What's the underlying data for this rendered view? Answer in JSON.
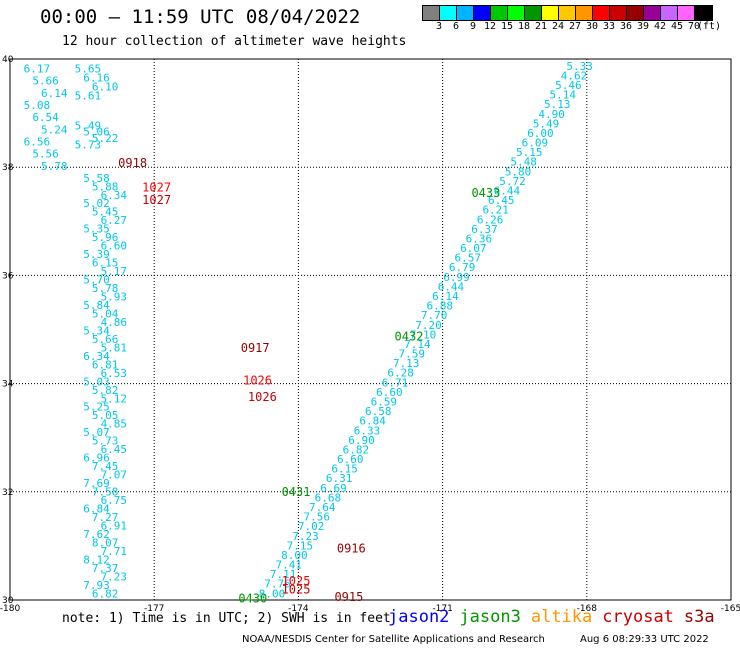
{
  "header": {
    "title": "00:00 – 11:59 UTC 08/04/2022",
    "subtitle": "12 hour collection of altimeter wave heights"
  },
  "colorbar": {
    "colors": [
      "#808080",
      "#00ffff",
      "#00b4ff",
      "#0000ff",
      "#00c800",
      "#00ff00",
      "#009600",
      "#ffff00",
      "#ffc800",
      "#ff9600",
      "#ff0000",
      "#c80000",
      "#960000",
      "#960096",
      "#c864ff",
      "#ff64ff",
      "#000000"
    ],
    "labels": [
      "3",
      "6",
      "9",
      "12",
      "15",
      "18",
      "21",
      "24",
      "27",
      "30",
      "33",
      "36",
      "39",
      "42",
      "45",
      "70",
      "(ft)"
    ]
  },
  "map": {
    "lon_range": [
      -180,
      -165
    ],
    "lat_range": [
      30,
      40
    ],
    "x_ticks": [
      "-180",
      "-177",
      "-174",
      "-171",
      "-168",
      "-165"
    ],
    "y_ticks": [
      "30",
      "32",
      "34",
      "36",
      "38",
      "40"
    ],
    "grid": true
  },
  "tracks": {
    "left_cols": [
      {
        "lon": -179.44,
        "lat_top": 39.75,
        "lat_bot": 37.95,
        "values": [
          "6.17",
          "5.66",
          "6.14",
          "5.08",
          "6.54",
          "5.24",
          "6.56",
          "5.56",
          "5.78"
        ]
      },
      {
        "lon": -178.38,
        "lat_top": 39.75,
        "lat_bot": 39.25,
        "values": [
          "5.65",
          "6.16",
          "6.10",
          "5.61"
        ]
      },
      {
        "lon": -178.38,
        "lat_top": 38.7,
        "lat_bot": 38.35,
        "values": [
          "5.49",
          "5.06",
          "5.22",
          "5.73"
        ]
      },
      {
        "lon": -178.2,
        "lat_top": 37.73,
        "lat_bot": 30.05,
        "values": [
          "5.58",
          "5.88",
          "6.34",
          "5.02",
          "5.45",
          "6.27",
          "5.35",
          "5.96",
          "6.60",
          "5.39",
          "6.15",
          "5.17",
          "5.70",
          "5.78",
          "5.93",
          "5.84",
          "5.04",
          "4.86",
          "5.34",
          "5.66",
          "5.81",
          "6.34",
          "6.81",
          "6.53",
          "5.03",
          "5.82",
          "5.12",
          "5.25",
          "5.05",
          "4.85",
          "5.07",
          "5.73",
          "6.45",
          "6.96",
          "7.45",
          "7.07",
          "7.69",
          "7.58",
          "6.75",
          "6.84",
          "7.27",
          "6.91",
          "7.62",
          "8.07",
          "7.71",
          "8.12",
          "7.37",
          "7.23",
          "7.93",
          "6.82"
        ]
      }
    ],
    "right_track": {
      "lon_top": -168.15,
      "lat_top": 39.8,
      "lon_bot": -174.55,
      "lat_bot": 30.05,
      "values": [
        "5.33",
        "4.62",
        "5.46",
        "5.14",
        "5.13",
        "4.90",
        "5.49",
        "6.00",
        "6.09",
        "5.15",
        "5.48",
        "5.80",
        "5.72",
        "6.44",
        "6.45",
        "6.21",
        "6.26",
        "6.37",
        "6.36",
        "6.07",
        "6.57",
        "6.79",
        "6.99",
        "6.44",
        "6.14",
        "6.88",
        "7.70",
        "7.20",
        "7.10",
        "7.14",
        "7.59",
        "7.13",
        "6.28",
        "6.71",
        "6.60",
        "6.59",
        "6.58",
        "6.84",
        "6.33",
        "6.90",
        "6.82",
        "6.60",
        "6.15",
        "6.31",
        "6.69",
        "6.68",
        "7.64",
        "7.56",
        "7.02",
        "7.23",
        "7.15",
        "8.00",
        "7.41",
        "7.11",
        "7.76",
        "8.00"
      ]
    },
    "time_labels": [
      {
        "text": "0918",
        "lon": -177.75,
        "lat": 38.0,
        "color": "#960000"
      },
      {
        "text": "1027",
        "lon": -177.25,
        "lat": 37.55,
        "color": "#ff0000"
      },
      {
        "text": "1027",
        "lon": -177.25,
        "lat": 37.32,
        "color": "#c80000"
      },
      {
        "text": "0433",
        "lon": -170.4,
        "lat": 37.45,
        "color": "#009600"
      },
      {
        "text": "0917",
        "lon": -175.2,
        "lat": 34.58,
        "color": "#960000"
      },
      {
        "text": "0432",
        "lon": -172.0,
        "lat": 34.8,
        "color": "#009600"
      },
      {
        "text": "1026",
        "lon": -175.15,
        "lat": 33.98,
        "color": "#ff0000"
      },
      {
        "text": "1026",
        "lon": -175.05,
        "lat": 33.68,
        "color": "#c80000"
      },
      {
        "text": "0431",
        "lon": -174.35,
        "lat": 31.92,
        "color": "#009600"
      },
      {
        "text": "0916",
        "lon": -173.2,
        "lat": 30.88,
        "color": "#960000"
      },
      {
        "text": "1025",
        "lon": -174.35,
        "lat": 30.28,
        "color": "#ff0000"
      },
      {
        "text": "1025",
        "lon": -174.35,
        "lat": 30.12,
        "color": "#c80000"
      },
      {
        "text": "0430",
        "lon": -175.25,
        "lat": 29.95,
        "color": "#009600"
      },
      {
        "text": "0915",
        "lon": -173.25,
        "lat": 29.98,
        "color": "#960000"
      }
    ]
  },
  "footer": {
    "note": "note: 1) Time is in UTC; 2) SWH is in feet",
    "legend": [
      {
        "label": "jason2",
        "color": "#0000ff"
      },
      {
        "label": "jason3",
        "color": "#009600"
      },
      {
        "label": "altika",
        "color": "#ff9600"
      },
      {
        "label": "cryosat",
        "color": "#c80000"
      },
      {
        "label": "s3a",
        "color": "#960000"
      }
    ],
    "credit": "NOAA/NESDIS Center for Satellite Applications and Research",
    "timestamp": "Aug  6 08:29:33 UTC 2022"
  }
}
